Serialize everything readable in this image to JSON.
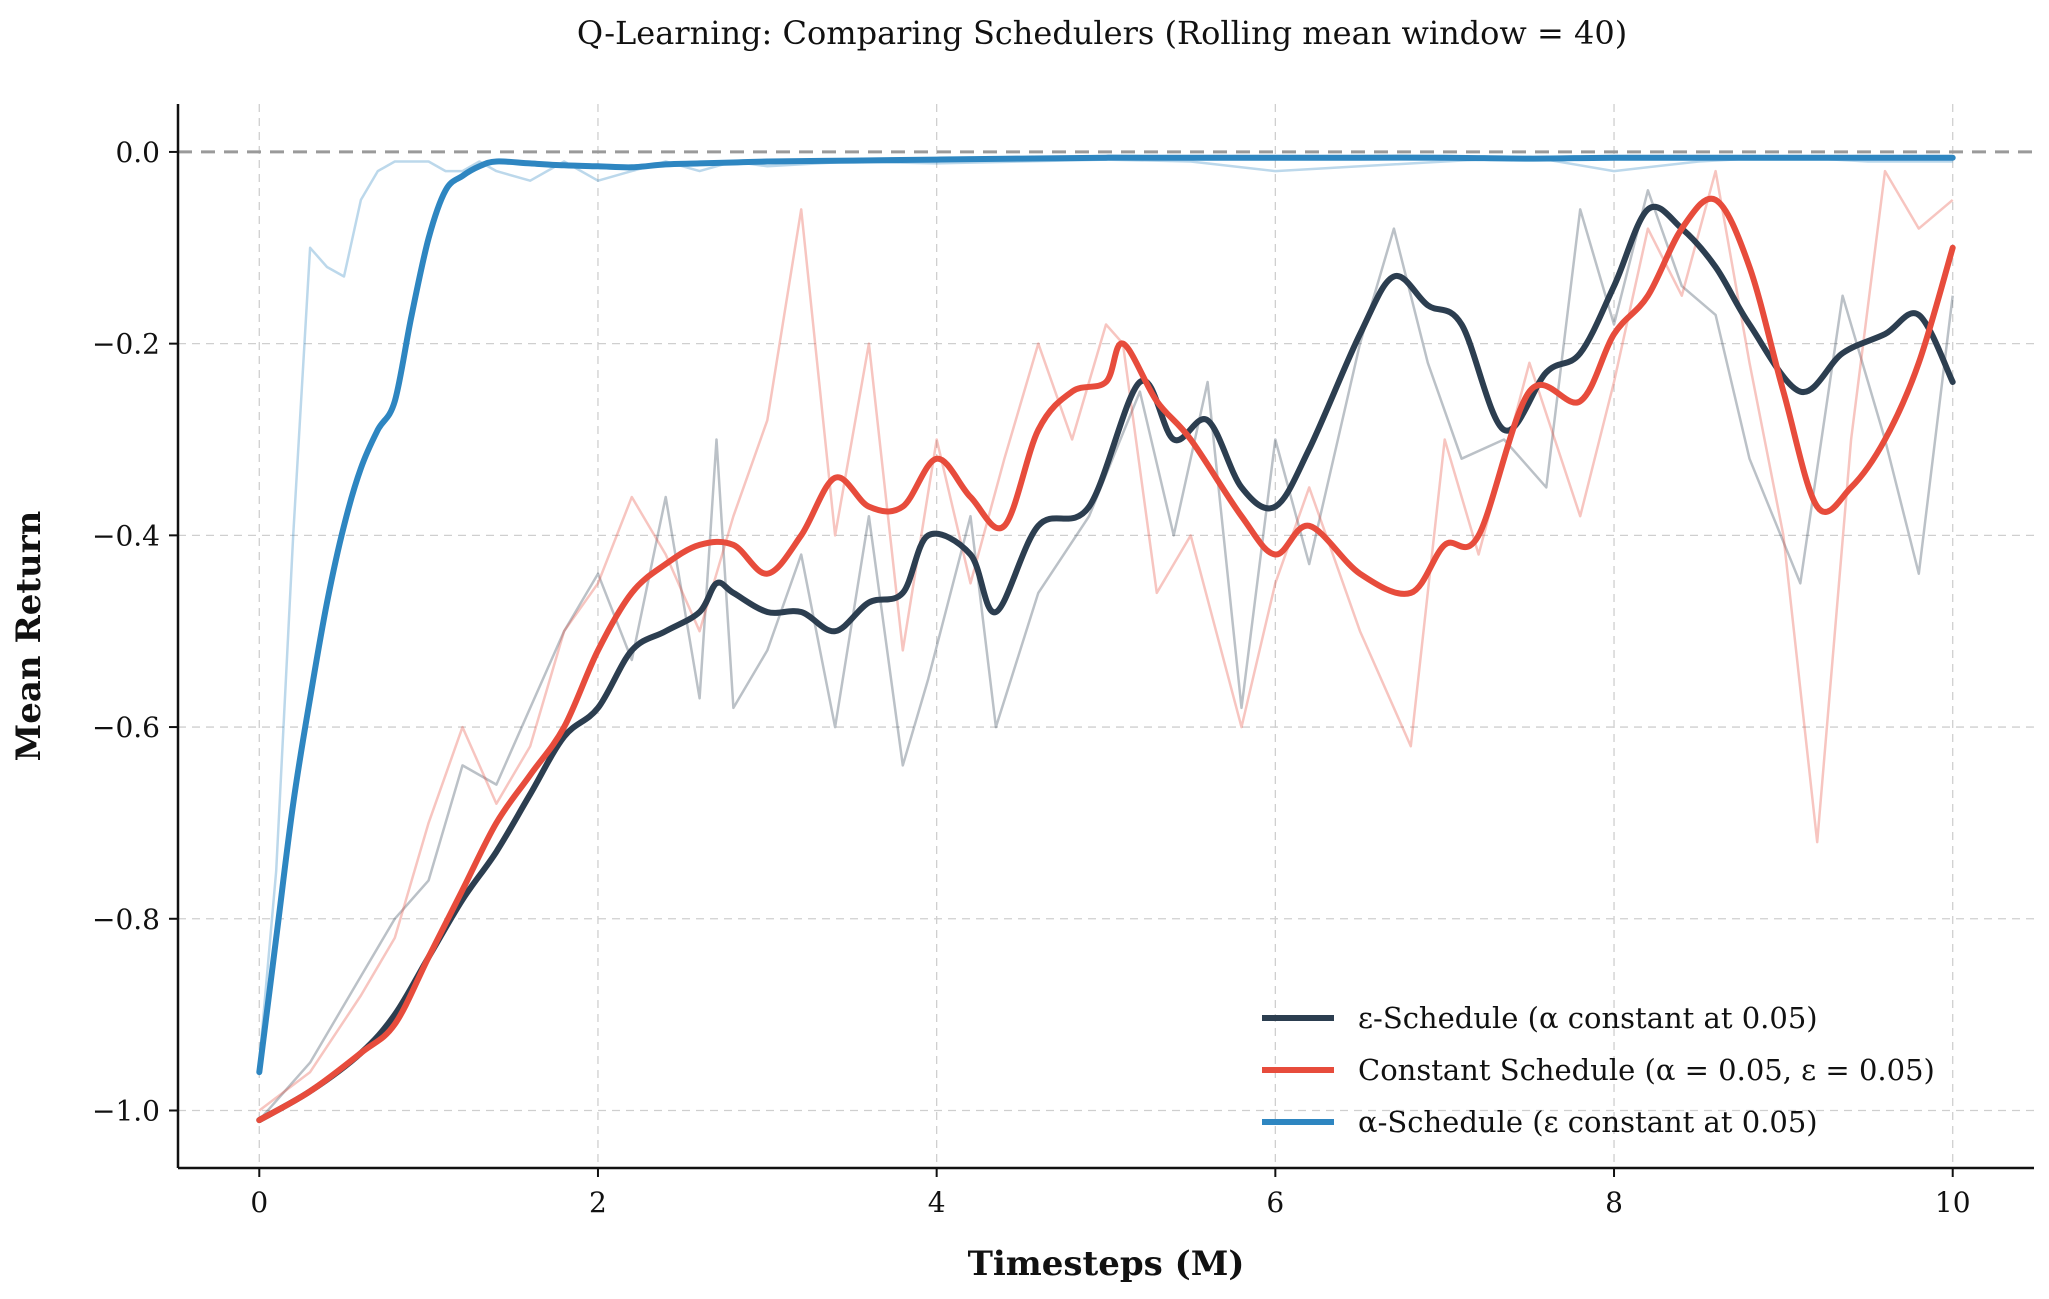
{
  "chart_data": {
    "type": "line",
    "title": "Q-Learning: Comparing Schedulers (Rolling mean window = 40)",
    "xlabel": "Timesteps (M)",
    "ylabel": "Mean Return",
    "xlim": [
      -0.48,
      10.48
    ],
    "ylim": [
      -1.06,
      0.05
    ],
    "x_ticks": [
      0,
      2,
      4,
      6,
      8,
      10
    ],
    "x_tick_labels": [
      "0",
      "2",
      "4",
      "6",
      "8",
      "10"
    ],
    "y_ticks": [
      0.0,
      -0.2,
      -0.4,
      -0.6,
      -0.8,
      -1.0
    ],
    "y_tick_labels": [
      "0.0",
      "−0.2",
      "−0.4",
      "−0.6",
      "−0.8",
      "−1.0"
    ],
    "grid": true,
    "reference_line": {
      "y": 0.0,
      "style": "dashed",
      "color": "#9a9a9a"
    },
    "legend": {
      "placement": "lower-right"
    },
    "series": [
      {
        "name": "ε-Schedule (α constant at 0.05)",
        "color": "#2c3e50",
        "x": [
          0,
          0.3,
          0.6,
          0.8,
          1.0,
          1.2,
          1.4,
          1.6,
          1.8,
          2.0,
          2.2,
          2.4,
          2.6,
          2.7,
          2.8,
          3.0,
          3.2,
          3.4,
          3.6,
          3.8,
          3.95,
          4.2,
          4.35,
          4.6,
          4.9,
          5.2,
          5.4,
          5.6,
          5.8,
          6.0,
          6.2,
          6.5,
          6.7,
          6.9,
          7.1,
          7.35,
          7.6,
          7.8,
          8.0,
          8.2,
          8.4,
          8.6,
          8.8,
          9.1,
          9.35,
          9.6,
          9.8,
          10.0
        ],
        "values": [
          -1.01,
          -0.98,
          -0.94,
          -0.9,
          -0.84,
          -0.78,
          -0.73,
          -0.67,
          -0.61,
          -0.58,
          -0.52,
          -0.5,
          -0.48,
          -0.45,
          -0.46,
          -0.48,
          -0.48,
          -0.5,
          -0.47,
          -0.46,
          -0.4,
          -0.42,
          -0.48,
          -0.39,
          -0.37,
          -0.24,
          -0.3,
          -0.28,
          -0.35,
          -0.37,
          -0.31,
          -0.19,
          -0.13,
          -0.16,
          -0.18,
          -0.29,
          -0.23,
          -0.21,
          -0.14,
          -0.06,
          -0.08,
          -0.12,
          -0.18,
          -0.25,
          -0.21,
          -0.19,
          -0.17,
          -0.24
        ],
        "raw_values": [
          -1.01,
          -0.95,
          -0.86,
          -0.8,
          -0.76,
          -0.64,
          -0.66,
          -0.58,
          -0.5,
          -0.44,
          -0.53,
          -0.36,
          -0.57,
          -0.3,
          -0.58,
          -0.52,
          -0.42,
          -0.6,
          -0.38,
          -0.64,
          -0.55,
          -0.38,
          -0.6,
          -0.46,
          -0.38,
          -0.25,
          -0.4,
          -0.24,
          -0.58,
          -0.3,
          -0.43,
          -0.2,
          -0.08,
          -0.22,
          -0.32,
          -0.3,
          -0.35,
          -0.06,
          -0.18,
          -0.04,
          -0.14,
          -0.17,
          -0.32,
          -0.45,
          -0.15,
          -0.3,
          -0.44,
          -0.15
        ]
      },
      {
        "name": "Constant Schedule (α = 0.05, ε = 0.05)",
        "color": "#e74c3c",
        "x": [
          0,
          0.3,
          0.6,
          0.8,
          1.0,
          1.2,
          1.4,
          1.6,
          1.8,
          2.0,
          2.2,
          2.4,
          2.6,
          2.8,
          3.0,
          3.2,
          3.4,
          3.6,
          3.8,
          4.0,
          4.2,
          4.4,
          4.6,
          4.8,
          5.0,
          5.1,
          5.3,
          5.5,
          5.8,
          6.0,
          6.2,
          6.5,
          6.8,
          7.0,
          7.2,
          7.5,
          7.8,
          8.0,
          8.2,
          8.4,
          8.6,
          8.8,
          9.0,
          9.2,
          9.4,
          9.6,
          9.8,
          10.0
        ],
        "values": [
          -1.01,
          -0.98,
          -0.94,
          -0.91,
          -0.84,
          -0.77,
          -0.7,
          -0.65,
          -0.6,
          -0.52,
          -0.46,
          -0.43,
          -0.41,
          -0.41,
          -0.44,
          -0.4,
          -0.34,
          -0.37,
          -0.37,
          -0.32,
          -0.36,
          -0.39,
          -0.29,
          -0.25,
          -0.24,
          -0.2,
          -0.26,
          -0.3,
          -0.38,
          -0.42,
          -0.39,
          -0.44,
          -0.46,
          -0.41,
          -0.4,
          -0.25,
          -0.26,
          -0.19,
          -0.15,
          -0.08,
          -0.05,
          -0.12,
          -0.25,
          -0.37,
          -0.35,
          -0.3,
          -0.22,
          -0.1
        ],
        "raw_values": [
          -1.0,
          -0.96,
          -0.88,
          -0.82,
          -0.7,
          -0.6,
          -0.68,
          -0.62,
          -0.5,
          -0.45,
          -0.36,
          -0.42,
          -0.5,
          -0.38,
          -0.28,
          -0.06,
          -0.4,
          -0.2,
          -0.52,
          -0.3,
          -0.45,
          -0.32,
          -0.2,
          -0.3,
          -0.18,
          -0.2,
          -0.46,
          -0.4,
          -0.6,
          -0.45,
          -0.35,
          -0.5,
          -0.62,
          -0.3,
          -0.42,
          -0.22,
          -0.38,
          -0.24,
          -0.08,
          -0.15,
          -0.02,
          -0.22,
          -0.4,
          -0.72,
          -0.3,
          -0.02,
          -0.08,
          -0.05
        ]
      },
      {
        "name": "α-Schedule (ε constant at 0.05)",
        "color": "#2e86c1",
        "x": [
          0,
          0.1,
          0.2,
          0.3,
          0.4,
          0.5,
          0.6,
          0.7,
          0.8,
          0.9,
          1.0,
          1.1,
          1.2,
          1.3,
          1.4,
          1.6,
          1.8,
          2.0,
          2.2,
          2.4,
          2.6,
          2.8,
          3.0,
          3.5,
          4.0,
          4.5,
          5.0,
          5.5,
          6.0,
          6.5,
          7.0,
          7.5,
          8.0,
          8.5,
          9.0,
          9.5,
          10.0
        ],
        "values": [
          -0.96,
          -0.82,
          -0.68,
          -0.57,
          -0.47,
          -0.39,
          -0.33,
          -0.29,
          -0.26,
          -0.17,
          -0.09,
          -0.04,
          -0.025,
          -0.015,
          -0.01,
          -0.012,
          -0.014,
          -0.015,
          -0.016,
          -0.013,
          -0.012,
          -0.011,
          -0.01,
          -0.009,
          -0.008,
          -0.007,
          -0.006,
          -0.006,
          -0.006,
          -0.006,
          -0.006,
          -0.007,
          -0.006,
          -0.006,
          -0.006,
          -0.006,
          -0.006
        ],
        "raw_values": [
          -0.95,
          -0.75,
          -0.4,
          -0.1,
          -0.12,
          -0.13,
          -0.05,
          -0.02,
          -0.01,
          -0.01,
          -0.01,
          -0.02,
          -0.02,
          -0.01,
          -0.02,
          -0.03,
          -0.01,
          -0.03,
          -0.02,
          -0.01,
          -0.02,
          -0.01,
          -0.015,
          -0.01,
          -0.012,
          -0.01,
          -0.008,
          -0.01,
          -0.02,
          -0.015,
          -0.01,
          -0.005,
          -0.02,
          -0.01,
          -0.005,
          -0.01,
          -0.01
        ]
      }
    ]
  }
}
